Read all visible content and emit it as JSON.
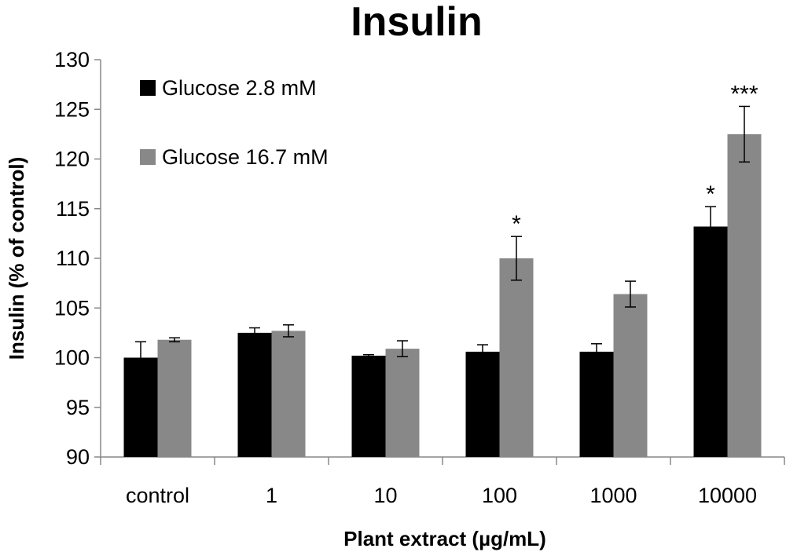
{
  "chart_data": {
    "type": "bar",
    "title": "Insulin",
    "xlabel": "Plant extract (µg/mL)",
    "ylabel": "Insulin (% of control)",
    "ylim": [
      90,
      130
    ],
    "yticks": [
      90,
      95,
      100,
      105,
      110,
      115,
      120,
      125,
      130
    ],
    "categories": [
      "control",
      "1",
      "10",
      "100",
      "1000",
      "10000"
    ],
    "legend_position": "top-left",
    "grid": false,
    "series": [
      {
        "name": "Glucose 2.8 mM",
        "color": "#000000",
        "values": [
          100.0,
          102.5,
          100.2,
          100.6,
          100.6,
          113.2
        ],
        "errors": [
          1.6,
          0.5,
          0.1,
          0.7,
          0.8,
          2.0
        ],
        "annotations": [
          "",
          "",
          "",
          "",
          "",
          "*"
        ]
      },
      {
        "name": "Glucose 16.7 mM",
        "color": "#888888",
        "values": [
          101.8,
          102.7,
          100.9,
          110.0,
          106.4,
          122.5
        ],
        "errors": [
          0.2,
          0.6,
          0.8,
          2.2,
          1.3,
          2.8
        ],
        "annotations": [
          "",
          "",
          "",
          "*",
          "",
          "***"
        ]
      }
    ]
  }
}
